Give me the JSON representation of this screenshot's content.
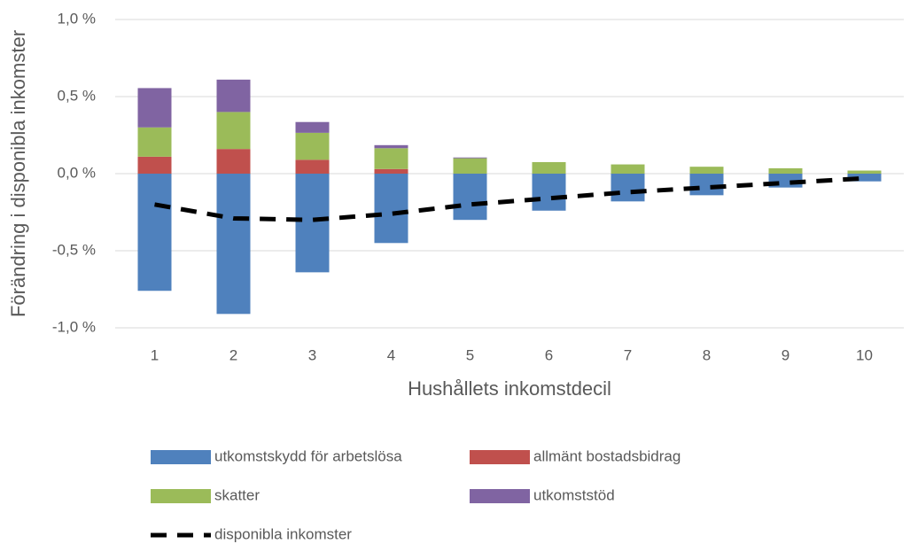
{
  "chart_data": {
    "type": "stacked_bar_line",
    "x_label": "Hushållets inkomstdecil",
    "y_label": "Förändring i disponibla inkomster",
    "categories": [
      "1",
      "2",
      "3",
      "4",
      "5",
      "6",
      "7",
      "8",
      "9",
      "10"
    ],
    "series": [
      {
        "name": "utkomstskydd för arbetslösa",
        "color": "#4f81bd",
        "kind": "bar",
        "values": [
          -0.76,
          -0.91,
          -0.64,
          -0.45,
          -0.3,
          -0.24,
          -0.18,
          -0.14,
          -0.09,
          -0.05
        ]
      },
      {
        "name": "allmänt bostadsbidrag",
        "color": "#c0504d",
        "kind": "bar",
        "values": [
          0.11,
          0.16,
          0.09,
          0.03,
          0,
          0,
          0,
          0,
          0,
          0
        ]
      },
      {
        "name": "skatter",
        "color": "#9bbb59",
        "kind": "bar",
        "values": [
          0.19,
          0.24,
          0.175,
          0.135,
          0.1,
          0.075,
          0.06,
          0.045,
          0.035,
          0.02
        ]
      },
      {
        "name": "utkomststöd",
        "color": "#8064a2",
        "kind": "bar",
        "values": [
          0.255,
          0.21,
          0.07,
          0.02,
          0.005,
          0,
          0,
          0,
          0,
          0
        ]
      },
      {
        "name": "disponibla inkomster",
        "color": "#000000",
        "kind": "line",
        "dashed": true,
        "values": [
          -0.2,
          -0.29,
          -0.3,
          -0.26,
          -0.2,
          -0.16,
          -0.12,
          -0.09,
          -0.06,
          -0.03
        ]
      }
    ],
    "ylim": [
      -1.0,
      1.0
    ],
    "yticks": [
      {
        "value": -1.0,
        "label": "-1,0 %"
      },
      {
        "value": -0.5,
        "label": "-0,5 %"
      },
      {
        "value": 0,
        "label": "0,0 %"
      },
      {
        "value": 0.5,
        "label": "0,5 %"
      },
      {
        "value": 1.0,
        "label": "1,0 %"
      }
    ],
    "grid": true
  }
}
